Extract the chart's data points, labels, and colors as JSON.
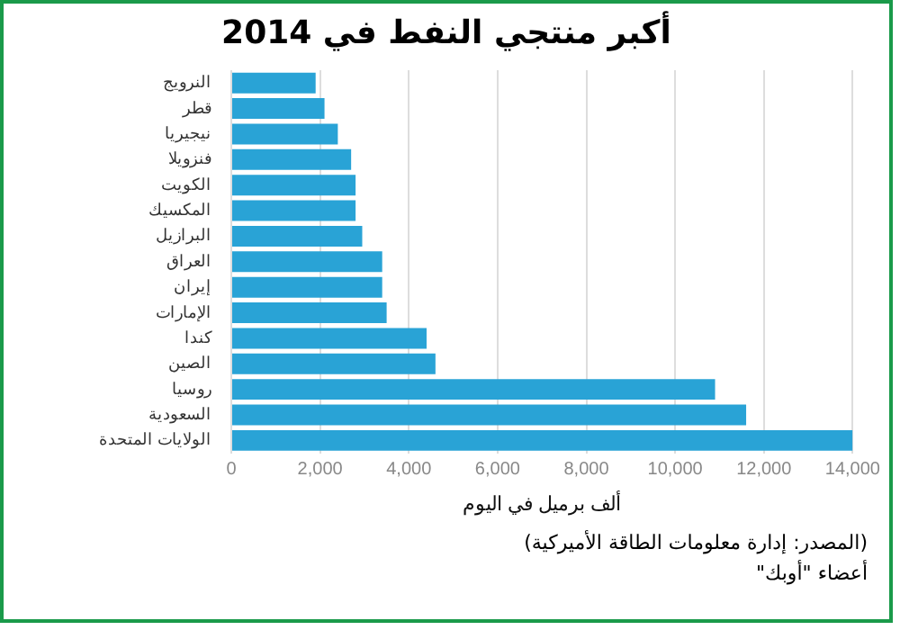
{
  "chart_data": {
    "type": "bar",
    "orientation": "horizontal",
    "title": "أكبر منتجي النفط في 2014",
    "xlabel": "ألف برميل في اليوم",
    "categories": [
      "النرويج",
      "قطر",
      "نيجيريا",
      "فنزويلا",
      "الكويت",
      "المكسيك",
      "البرازيل",
      "العراق",
      "إيران",
      "الإمارات",
      "كندا",
      "الصين",
      "روسيا",
      "السعودية",
      "الولايات المتحدة"
    ],
    "values": [
      1900,
      2100,
      2400,
      2700,
      2800,
      2800,
      2950,
      3400,
      3400,
      3500,
      4400,
      4600,
      10900,
      11600,
      14000
    ],
    "color": "#29a3d6",
    "xlim": [
      0,
      14000
    ],
    "xticks": [
      {
        "value": 0,
        "label": "0"
      },
      {
        "value": 2000,
        "label": "2,000"
      },
      {
        "value": 4000,
        "label": "4,000"
      },
      {
        "value": 6000,
        "label": "6,000"
      },
      {
        "value": 8000,
        "label": "8,000"
      },
      {
        "value": 10000,
        "label": "10,000"
      },
      {
        "value": 12000,
        "label": "12,000"
      },
      {
        "value": 14000,
        "label": "14,000"
      }
    ],
    "grid": "x",
    "annotations": [
      "(المصدر: إدارة معلومات الطاقة الأميركية)",
      "أعضاء \"أوبك\""
    ]
  }
}
